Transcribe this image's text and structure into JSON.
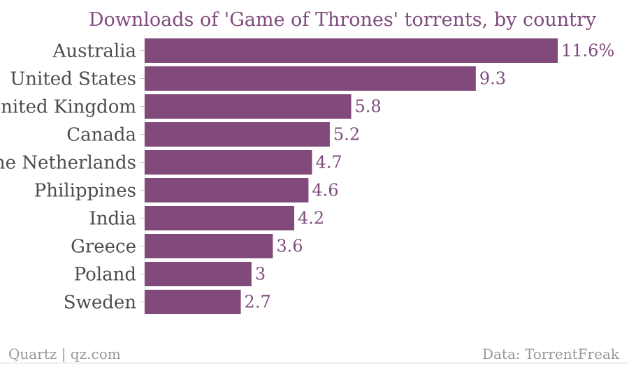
{
  "chart_data": {
    "type": "bar",
    "orientation": "horizontal",
    "title": "Downloads of 'Game of Thrones' torrents, by country",
    "categories": [
      "Australia",
      "United States",
      "United Kingdom",
      "Canada",
      "The Netherlands",
      "Philippines",
      "India",
      "Greece",
      "Poland",
      "Sweden"
    ],
    "values": [
      11.6,
      9.3,
      5.8,
      5.2,
      4.7,
      4.6,
      4.2,
      3.6,
      3,
      2.7
    ],
    "value_labels": [
      "11.6%",
      "9.3",
      "5.8",
      "5.2",
      "4.7",
      "4.6",
      "4.2",
      "3.6",
      "3",
      "2.7"
    ],
    "xlim": [
      0,
      11.6
    ],
    "grid": false,
    "legend": "none",
    "bar_color": "#824a7b",
    "title_color": "#7f4c7d"
  },
  "footer": {
    "source_left": "Quartz | qz.com",
    "source_right": "Data: TorrentFreak"
  }
}
